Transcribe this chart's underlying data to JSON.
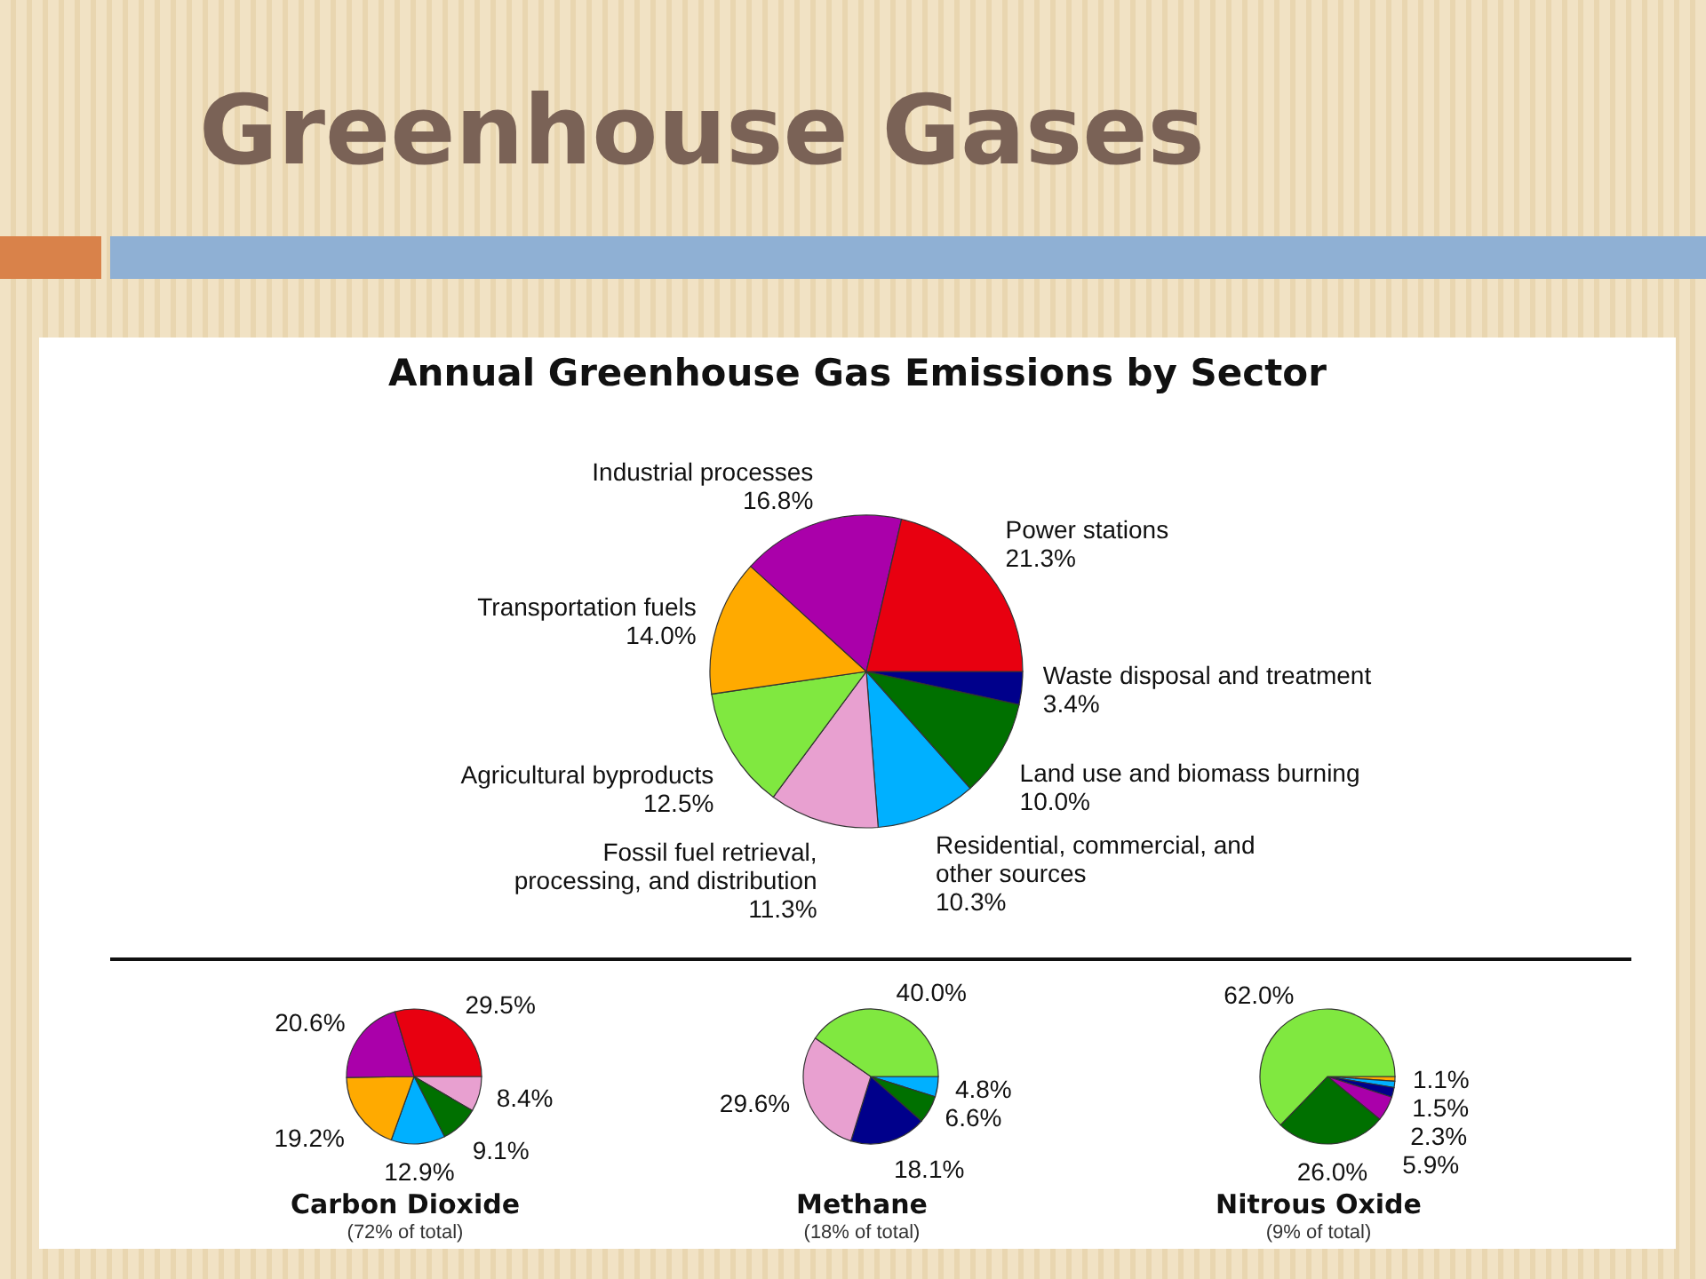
{
  "chart_data": [
    {
      "type": "pie",
      "title": "Greenhouse Gases",
      "subtitle": "Annual Greenhouse Gas Emissions by Sector",
      "categories": [
        "Waste disposal and treatment",
        "Land use and biomass burning",
        "Residential, commercial, and other sources",
        "Fossil fuel retrieval, processing, and distribution",
        "Agricultural byproducts",
        "Transportation fuels",
        "Industrial processes",
        "Power stations"
      ],
      "values": [
        3.4,
        10.0,
        10.3,
        11.3,
        12.5,
        14.0,
        16.8,
        21.3
      ],
      "colors": [
        "#00008b",
        "#007000",
        "#00b0ff",
        "#e8a0d0",
        "#80e840",
        "#ffaa00",
        "#aa00aa",
        "#e80010"
      ],
      "value_labels": [
        "3.4%",
        "10.0%",
        "10.3%",
        "11.3%",
        "12.5%",
        "14.0%",
        "16.8%",
        "21.3%"
      ]
    },
    {
      "type": "pie",
      "title": "Carbon Dioxide",
      "annotations": [
        "(72% of total)"
      ],
      "categories": [
        null,
        null,
        null,
        null,
        null,
        null
      ],
      "values": [
        8.4,
        9.1,
        12.9,
        19.2,
        20.6,
        29.5
      ],
      "colors": [
        "#e8a0d0",
        "#007000",
        "#00b0ff",
        "#ffaa00",
        "#aa00aa",
        "#e80010"
      ],
      "value_labels": [
        "8.4%",
        "9.1%",
        "12.9%",
        "19.2%",
        "20.6%",
        "29.5%"
      ]
    },
    {
      "type": "pie",
      "title": "Methane",
      "annotations": [
        "(18% of total)"
      ],
      "categories": [
        null,
        null,
        null,
        null,
        null
      ],
      "values": [
        4.8,
        6.6,
        18.1,
        29.6,
        40.0
      ],
      "colors": [
        "#00b0ff",
        "#007000",
        "#00008b",
        "#e8a0d0",
        "#80e840"
      ],
      "value_labels": [
        "4.8%",
        "6.6%",
        "18.1%",
        "29.6%",
        "40.0%"
      ]
    },
    {
      "type": "pie",
      "title": "Nitrous Oxide",
      "annotations": [
        "(9% of total)"
      ],
      "categories": [
        null,
        null,
        null,
        null,
        null,
        null
      ],
      "values": [
        1.1,
        1.5,
        2.3,
        5.9,
        26.0,
        62.0
      ],
      "colors": [
        "#ffaa00",
        "#00b0ff",
        "#00008b",
        "#aa00aa",
        "#007000",
        "#80e840"
      ],
      "value_labels": [
        "1.1%",
        "1.5%",
        "2.3%",
        "5.9%",
        "26.0%",
        "62.0%"
      ]
    }
  ]
}
